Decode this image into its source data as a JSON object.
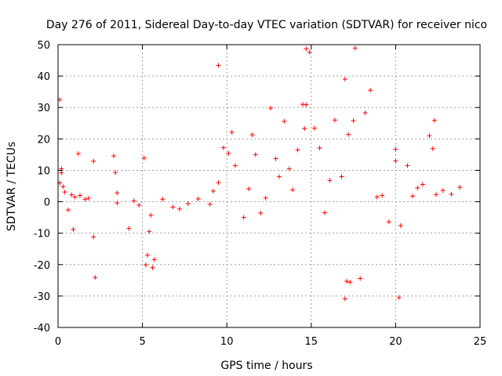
{
  "chart_data": {
    "type": "scatter",
    "title": "Day 276 of 2011, Sidereal Day-to-day VTEC variation (SDTVAR) for receiver nico",
    "xlabel": "GPS time / hours",
    "ylabel": "SDTVAR / TECUs",
    "xlim": [
      0,
      25
    ],
    "ylim": [
      -40,
      50
    ],
    "xticks": [
      "0",
      "5",
      "10",
      "15",
      "20",
      "25"
    ],
    "yticks": [
      "-40",
      "-30",
      "-20",
      "-10",
      "0",
      "10",
      "20",
      "30",
      "40",
      "50"
    ],
    "grid": true,
    "marker": "+",
    "color": "#ff0000",
    "series": [
      {
        "name": "SDTVAR",
        "x": [
          0.1,
          0.2,
          0.2,
          0.3,
          0.4,
          0.6,
          0.8,
          0.9,
          1.0,
          1.2,
          1.3,
          1.6,
          1.8,
          2.1,
          2.1,
          2.2,
          3.3,
          3.4,
          3.5,
          3.5,
          4.2,
          4.5,
          4.8,
          5.1,
          5.2,
          5.3,
          5.4,
          5.5,
          5.6,
          5.7,
          6.2,
          6.8,
          7.2,
          7.7,
          8.3,
          9.0,
          9.2,
          9.5,
          9.8,
          10.1,
          10.3,
          10.5,
          11.0,
          11.3,
          11.5,
          11.7,
          12.0,
          12.3,
          12.6,
          12.9,
          13.1,
          13.4,
          13.7,
          13.9,
          14.2,
          14.5,
          14.7,
          14.9,
          15.2,
          15.5,
          15.8,
          16.1,
          16.4,
          16.8,
          17.0,
          17.3,
          17.6,
          17.9,
          18.2,
          18.5,
          18.9,
          19.2,
          19.6,
          20.0,
          20.3,
          20.7,
          21.0,
          21.3,
          21.6,
          22.0,
          22.4,
          22.8,
          23.3,
          23.8,
          0.1,
          14.7,
          14.6,
          17.0,
          17.1,
          17.2,
          17.5,
          20.2,
          20.0,
          9.5,
          22.3,
          22.2
        ],
        "y": [
          32.5,
          10.5,
          9.2,
          4.8,
          3.1,
          -2.6,
          2.2,
          -8.8,
          1.5,
          15.3,
          2.0,
          0.8,
          1.1,
          12.9,
          -11.2,
          -24.1,
          14.6,
          9.3,
          2.8,
          -0.4,
          -8.5,
          0.3,
          -1.1,
          13.9,
          -20.1,
          -17.0,
          -9.5,
          -4.3,
          -21.0,
          -18.4,
          0.8,
          -1.7,
          -2.3,
          -0.6,
          0.9,
          -0.8,
          3.4,
          6.1,
          17.2,
          15.4,
          22.1,
          11.5,
          -5.0,
          4.1,
          21.3,
          15.0,
          -3.6,
          1.2,
          29.8,
          13.7,
          8.0,
          25.6,
          10.5,
          3.8,
          16.5,
          31.0,
          48.7,
          47.6,
          23.4,
          17.1,
          -3.5,
          6.8,
          26.0,
          8.0,
          39.0,
          -25.6,
          48.9,
          -24.4,
          28.3,
          35.5,
          1.5,
          2.0,
          -6.4,
          16.7,
          -7.6,
          11.5,
          1.8,
          4.4,
          5.5,
          21.0,
          2.3,
          3.6,
          2.4,
          4.6,
          6.0,
          30.9,
          23.3,
          -30.9,
          -25.3,
          21.4,
          25.8,
          -30.5,
          13.0,
          43.4,
          25.9,
          16.9
        ]
      }
    ]
  }
}
